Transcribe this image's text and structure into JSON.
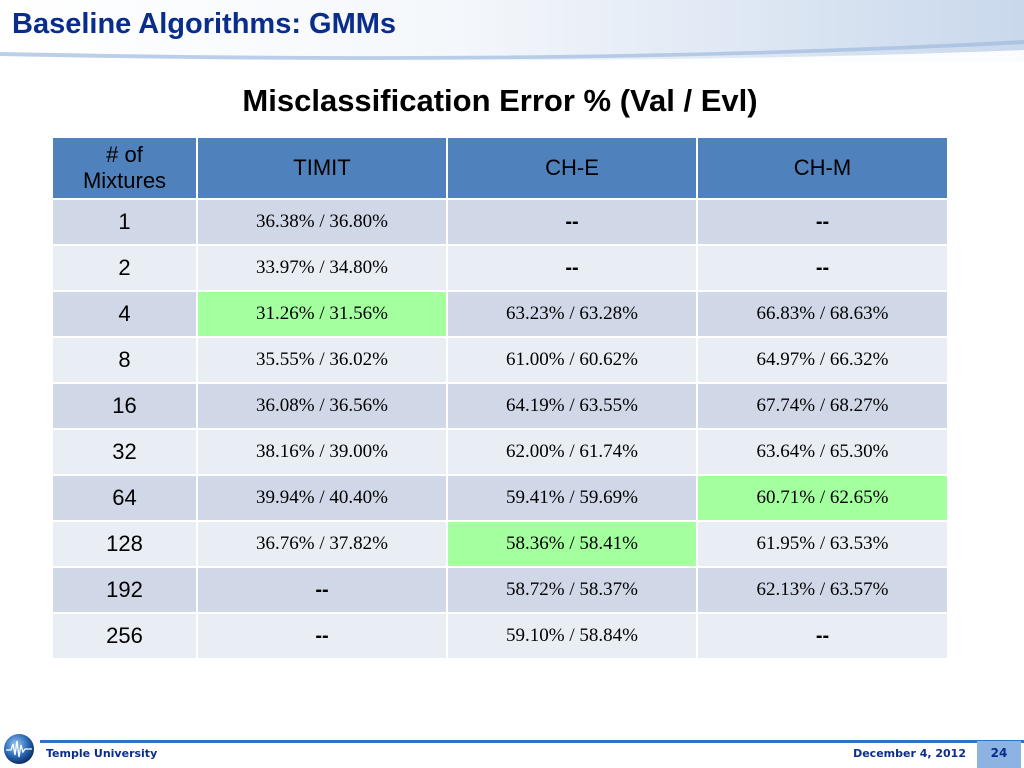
{
  "slide": {
    "title": "Baseline Algorithms: GMMs",
    "table_title": "Misclassification Error % (Val / Evl)"
  },
  "table": {
    "headers": [
      "# of Mixtures",
      "TIMIT",
      "CH-E",
      "CH-M"
    ],
    "rows": [
      {
        "mix": "1",
        "timit": "36.38% / 36.80%",
        "che": "--",
        "chm": "--"
      },
      {
        "mix": "2",
        "timit": "33.97% / 34.80%",
        "che": "--",
        "chm": "--"
      },
      {
        "mix": "4",
        "timit": "31.26% / 31.56%",
        "che": "63.23% / 63.28%",
        "chm": "66.83% / 68.63%"
      },
      {
        "mix": "8",
        "timit": "35.55% / 36.02%",
        "che": "61.00% / 60.62%",
        "chm": "64.97% / 66.32%"
      },
      {
        "mix": "16",
        "timit": "36.08% / 36.56%",
        "che": "64.19% / 63.55%",
        "chm": "67.74% / 68.27%"
      },
      {
        "mix": "32",
        "timit": "38.16% / 39.00%",
        "che": "62.00% / 61.74%",
        "chm": "63.64% / 65.30%"
      },
      {
        "mix": "64",
        "timit": "39.94% / 40.40%",
        "che": "59.41% / 59.69%",
        "chm": "60.71% / 62.65%"
      },
      {
        "mix": "128",
        "timit": "36.76% / 37.82%",
        "che": "58.36% / 58.41%",
        "chm": "61.95% / 63.53%"
      },
      {
        "mix": "192",
        "timit": "--",
        "che": "58.72% / 58.37%",
        "chm": "62.13% / 63.57%"
      },
      {
        "mix": "256",
        "timit": "--",
        "che": "59.10% / 58.84%",
        "chm": "--"
      }
    ],
    "best": {
      "timit": "4",
      "che": "128",
      "chm": "64"
    },
    "colors": {
      "header": "#4f81bd",
      "row_odd": "#d0d8e8",
      "row_even": "#e9edf4",
      "best": "#a4ff9f"
    }
  },
  "footer": {
    "logo_icon": "globe-icon",
    "organization": "Temple University",
    "date": "December 4, 2012",
    "page_number": "24"
  }
}
